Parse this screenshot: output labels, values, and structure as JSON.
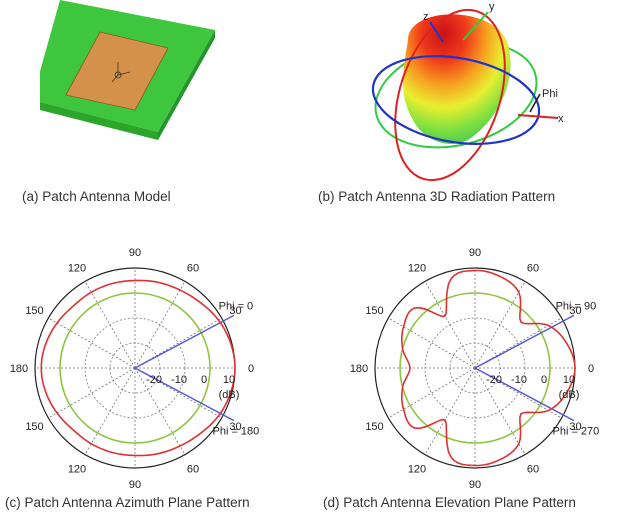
{
  "panels": {
    "a": {
      "caption": "(a) Patch Antenna Model"
    },
    "b": {
      "caption": "(b) Patch Antenna 3D Radiation Pattern",
      "axis_labels": {
        "x": "x",
        "y": "y",
        "z": "z",
        "phi": "Phi"
      }
    },
    "c": {
      "caption": "(c) Patch Antenna Azimuth Plane Pattern",
      "angle_labels": [
        "90",
        "60",
        "30",
        "0",
        "30",
        "60",
        "90",
        "120",
        "150",
        "180",
        "150",
        "120"
      ],
      "radial_labels": [
        "-20",
        "-10",
        "0",
        "10"
      ],
      "unit": "(dB)",
      "cut_labels": [
        "Phi = 0",
        "Phi = 180"
      ]
    },
    "d": {
      "caption": "(d) Patch Antenna Elevation Plane Pattern",
      "angle_labels": [
        "90",
        "60",
        "30",
        "0",
        "30",
        "60",
        "90",
        "120",
        "150",
        "180",
        "150",
        "120"
      ],
      "radial_labels": [
        "-20",
        "-10",
        "0",
        "10"
      ],
      "unit": "(dB)",
      "cut_labels": [
        "Phi = 90",
        "Phi = 270"
      ]
    }
  },
  "colors": {
    "pattern": "#e03030",
    "reference_circle": "#8cc63f",
    "cut_lines": "#5555dd",
    "substrate": "#3ec63e",
    "patch": "#d4914a"
  },
  "chart_data": [
    {
      "type": "polar",
      "name_ref": "c",
      "angles_deg": [
        0,
        15,
        30,
        45,
        60,
        75,
        90,
        105,
        120,
        135,
        150,
        165,
        180,
        195,
        210,
        225,
        240,
        255,
        270,
        285,
        300,
        315,
        330,
        345
      ],
      "gain_db": [
        10,
        9.5,
        8.5,
        7,
        6,
        5.5,
        5,
        5,
        5,
        5,
        6,
        7,
        7.5,
        7,
        6,
        5,
        5,
        5,
        5,
        5.5,
        6,
        7,
        8.5,
        9.5
      ],
      "reference_db": 0,
      "rlim": [
        -30,
        10
      ]
    },
    {
      "type": "polar",
      "name_ref": "d",
      "angles_deg": [
        0,
        15,
        30,
        45,
        60,
        75,
        90,
        105,
        120,
        135,
        150,
        165,
        180,
        195,
        210,
        225,
        240,
        255,
        270,
        285,
        300,
        315,
        330,
        345
      ],
      "gain_db": [
        10,
        8,
        4,
        -4,
        5,
        8,
        9,
        7,
        -6,
        4,
        3,
        0,
        -4,
        0,
        3,
        4,
        -6,
        7,
        9,
        8,
        5,
        -4,
        4,
        8
      ],
      "reference_db": 0,
      "rlim": [
        -30,
        10
      ]
    }
  ]
}
